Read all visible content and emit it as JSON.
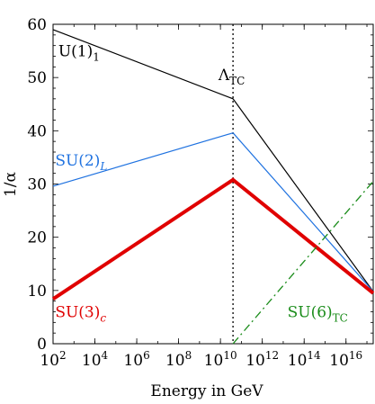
{
  "chart_data": {
    "type": "line",
    "xlabel": "Energy in GeV",
    "ylabel": "1/α",
    "x_scale": "log10",
    "xlim_log10": [
      2,
      17.3
    ],
    "ylim": [
      0,
      60
    ],
    "grid": false,
    "x_tick_bases": [
      "10",
      "10",
      "10",
      "10",
      "10",
      "10",
      "10",
      "10"
    ],
    "x_tick_exponents": [
      "2",
      "4",
      "6",
      "8",
      "10",
      "12",
      "14",
      "16"
    ],
    "x_tick_log10": [
      2,
      4,
      6,
      8,
      10,
      12,
      14,
      16
    ],
    "y_ticks": [
      0,
      10,
      20,
      30,
      40,
      50,
      60
    ],
    "y_tick_labels": [
      "0",
      "10",
      "20",
      "30",
      "40",
      "50",
      "60"
    ],
    "series": [
      {
        "name": "U(1)",
        "subscript": "1",
        "color": "#000000",
        "style": "solid",
        "width": 1.2,
        "x_log10": [
          2,
          10.6,
          17.3
        ],
        "y": [
          59,
          46,
          9.8
        ],
        "label_at": [
          2.25,
          54
        ]
      },
      {
        "name": "SU(2)",
        "subscript": "L",
        "color": "#1f72e0",
        "style": "solid",
        "width": 1.2,
        "x_log10": [
          2,
          10.6,
          17.3
        ],
        "y": [
          29.6,
          39.6,
          9.8
        ],
        "label_at": [
          2.1,
          33.5
        ]
      },
      {
        "name": "SU(3)",
        "subscript": "c",
        "color": "#e00000",
        "style": "solid",
        "width": 4,
        "x_log10": [
          2,
          10.6,
          17.3
        ],
        "y": [
          8.4,
          30.8,
          9.5
        ],
        "label_at": [
          2.1,
          5
        ]
      },
      {
        "name": "SU(6)",
        "subscript": "TC",
        "color": "#1a8c1a",
        "style": "dashdot",
        "width": 1.3,
        "x_log10": [
          10.6,
          17.3
        ],
        "y": [
          0,
          30.5
        ],
        "label_at": [
          13.2,
          5
        ]
      }
    ],
    "annotations": [
      {
        "type": "vline",
        "style": "dotted",
        "x_log10": 10.6,
        "label": "Λ",
        "label_subscript": "TC",
        "label_at": [
          9.9,
          49.5
        ]
      }
    ]
  }
}
